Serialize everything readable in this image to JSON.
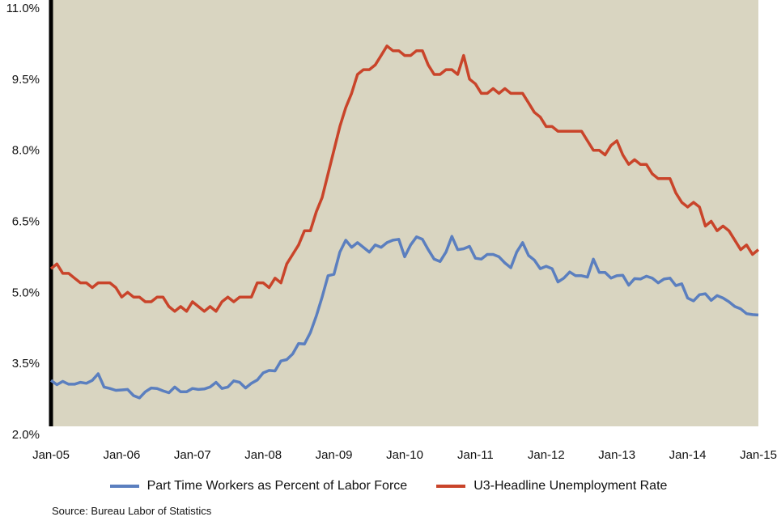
{
  "chart_data": {
    "type": "line",
    "title": "",
    "xlabel": "",
    "ylabel": "",
    "x_start": "2005-01",
    "x_end": "2015-01",
    "x_frequency": "monthly",
    "xtick_labels": [
      "Jan-05",
      "Jan-06",
      "Jan-07",
      "Jan-08",
      "Jan-09",
      "Jan-10",
      "Jan-11",
      "Jan-12",
      "Jan-13",
      "Jan-14",
      "Jan-15"
    ],
    "ytick_labels": [
      "2.0%",
      "3.5%",
      "5.0%",
      "6.5%",
      "8.0%",
      "9.5%",
      "11.0%"
    ],
    "yticks": [
      2.0,
      3.5,
      5.0,
      6.5,
      8.0,
      9.5,
      11.0
    ],
    "ylim": [
      2.0,
      11.0
    ],
    "grid": false,
    "background_color": "#d9d5c1",
    "legend_position": "bottom",
    "series": [
      {
        "name": "Part Time Workers as Percent of Labor Force",
        "color": "#5b7fbf",
        "values": [
          3.14,
          3.05,
          3.12,
          3.06,
          3.06,
          3.1,
          3.08,
          3.14,
          3.28,
          3.0,
          2.97,
          2.93,
          2.94,
          2.95,
          2.82,
          2.77,
          2.9,
          2.98,
          2.97,
          2.92,
          2.88,
          3.0,
          2.9,
          2.9,
          2.97,
          2.95,
          2.96,
          3.0,
          3.1,
          2.97,
          3.0,
          3.13,
          3.1,
          2.98,
          3.08,
          3.15,
          3.3,
          3.35,
          3.34,
          3.55,
          3.58,
          3.7,
          3.92,
          3.91,
          4.15,
          4.5,
          4.9,
          5.35,
          5.38,
          5.85,
          6.1,
          5.95,
          6.05,
          5.95,
          5.85,
          6.0,
          5.95,
          6.05,
          6.1,
          6.12,
          5.75,
          6.0,
          6.17,
          6.12,
          5.9,
          5.7,
          5.65,
          5.85,
          6.18,
          5.9,
          5.92,
          5.97,
          5.72,
          5.7,
          5.8,
          5.8,
          5.75,
          5.62,
          5.52,
          5.85,
          6.05,
          5.78,
          5.68,
          5.5,
          5.55,
          5.5,
          5.22,
          5.3,
          5.43,
          5.35,
          5.35,
          5.32,
          5.7,
          5.42,
          5.42,
          5.3,
          5.35,
          5.36,
          5.15,
          5.29,
          5.28,
          5.34,
          5.3,
          5.2,
          5.28,
          5.3,
          5.14,
          5.18,
          4.88,
          4.82,
          4.95,
          4.97,
          4.83,
          4.93,
          4.88,
          4.8,
          4.7,
          4.65,
          4.55,
          4.53,
          4.52
        ]
      },
      {
        "name": "U3-Headline Unemployment Rate",
        "color": "#c9442a",
        "values": [
          5.5,
          5.6,
          5.4,
          5.4,
          5.3,
          5.2,
          5.2,
          5.1,
          5.2,
          5.2,
          5.2,
          5.1,
          4.9,
          5.0,
          4.9,
          4.9,
          4.8,
          4.8,
          4.9,
          4.9,
          4.7,
          4.6,
          4.7,
          4.6,
          4.8,
          4.7,
          4.6,
          4.7,
          4.6,
          4.8,
          4.9,
          4.8,
          4.9,
          4.9,
          4.9,
          5.2,
          5.2,
          5.1,
          5.3,
          5.2,
          5.6,
          5.8,
          6.0,
          6.3,
          6.3,
          6.7,
          7.0,
          7.5,
          8.0,
          8.5,
          8.9,
          9.2,
          9.6,
          9.7,
          9.7,
          9.8,
          10.0,
          10.2,
          10.1,
          10.1,
          10.0,
          10.0,
          10.1,
          10.1,
          9.8,
          9.6,
          9.6,
          9.7,
          9.7,
          9.6,
          10.0,
          9.5,
          9.4,
          9.2,
          9.2,
          9.3,
          9.2,
          9.3,
          9.2,
          9.2,
          9.2,
          9.0,
          8.8,
          8.7,
          8.5,
          8.5,
          8.4,
          8.4,
          8.4,
          8.4,
          8.4,
          8.2,
          8.0,
          8.0,
          7.9,
          8.1,
          8.2,
          7.9,
          7.7,
          7.8,
          7.7,
          7.7,
          7.5,
          7.4,
          7.4,
          7.4,
          7.1,
          6.9,
          6.8,
          6.9,
          6.8,
          6.4,
          6.5,
          6.3,
          6.4,
          6.3,
          6.1,
          5.9,
          6.0,
          5.8,
          5.9
        ]
      }
    ]
  },
  "source": "Source: Bureau Labor of Statistics"
}
